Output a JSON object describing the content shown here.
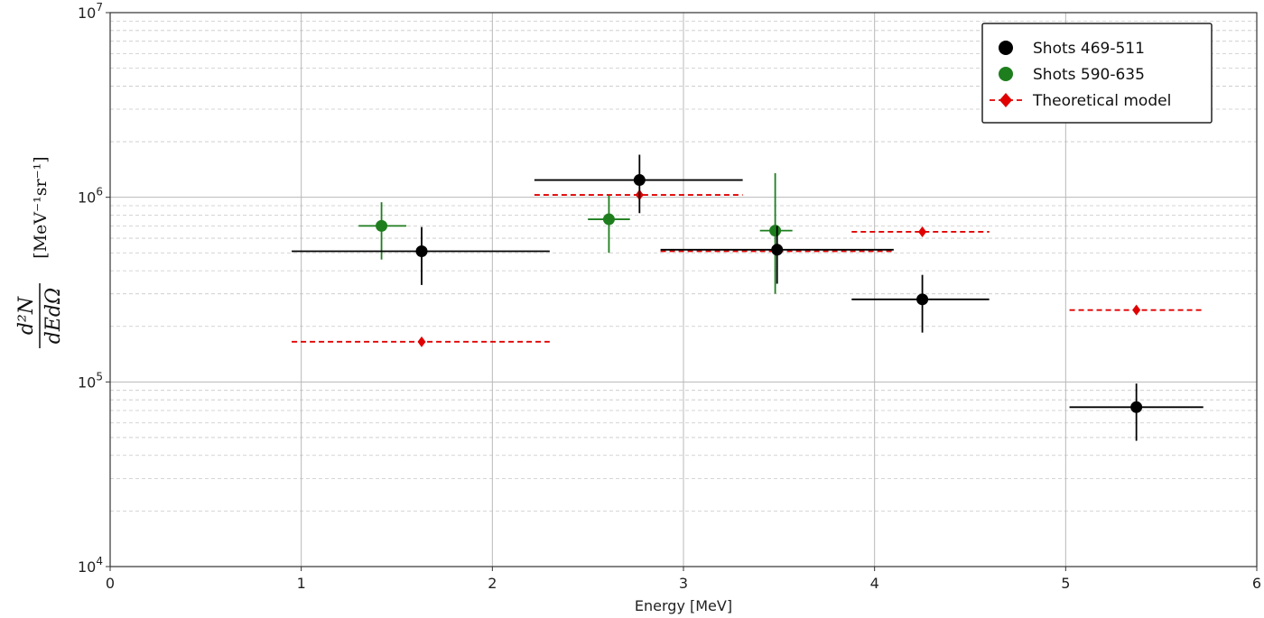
{
  "chart_data": {
    "type": "scatter",
    "title": "",
    "xlabel": "Energy [MeV]",
    "ylabel": {
      "numerator": "d²N",
      "denominator": "dEdΩ",
      "units": "[MeV⁻¹sr⁻¹]"
    },
    "xlim": [
      0,
      6
    ],
    "ylim": [
      10000,
      10000000
    ],
    "yscale": "log",
    "grid": true,
    "legend_position": "top-right",
    "x_ticks": [
      "0",
      "1",
      "2",
      "3",
      "4",
      "5",
      "6"
    ],
    "y_ticks": [
      {
        "base": "10",
        "exp": "4"
      },
      {
        "base": "10",
        "exp": "5"
      },
      {
        "base": "10",
        "exp": "6"
      },
      {
        "base": "10",
        "exp": "7"
      }
    ],
    "series": [
      {
        "name": "Shots 469-511",
        "color": "#000000",
        "marker": "circle",
        "points": [
          {
            "x": 1.63,
            "xerr": [
              0.95,
              2.3
            ],
            "y": 510000,
            "yerr": [
              335000,
              690000
            ]
          },
          {
            "x": 2.77,
            "xerr": [
              2.22,
              3.31
            ],
            "y": 1240000,
            "yerr": [
              820000,
              1700000
            ]
          },
          {
            "x": 3.49,
            "xerr": [
              2.88,
              4.1
            ],
            "y": 520000,
            "yerr": [
              340000,
              700000
            ]
          },
          {
            "x": 4.25,
            "xerr": [
              3.88,
              4.6
            ],
            "y": 280000,
            "yerr": [
              185000,
              380000
            ]
          },
          {
            "x": 5.37,
            "xerr": [
              5.02,
              5.72
            ],
            "y": 73000,
            "yerr": [
              48000,
              98000
            ]
          }
        ]
      },
      {
        "name": "Shots 590-635",
        "color": "#1e7e1e",
        "marker": "circle",
        "points": [
          {
            "x": 1.42,
            "xerr": [
              1.3,
              1.55
            ],
            "y": 700000,
            "yerr": [
              460000,
              940000
            ]
          },
          {
            "x": 2.61,
            "xerr": [
              2.5,
              2.72
            ],
            "y": 760000,
            "yerr": [
              500000,
              1020000
            ]
          },
          {
            "x": 3.48,
            "xerr": [
              3.4,
              3.57
            ],
            "y": 660000,
            "yerr": [
              300000,
              1350000
            ]
          }
        ]
      },
      {
        "name": "Theoretical model",
        "color": "#e00000",
        "marker": "diamond",
        "linestyle": "dashed",
        "points": [
          {
            "x": 1.63,
            "xerr": [
              0.95,
              2.3
            ],
            "y": 165000
          },
          {
            "x": 2.77,
            "xerr": [
              2.22,
              3.31
            ],
            "y": 1030000
          },
          {
            "x": 3.49,
            "xerr": [
              2.88,
              4.1
            ],
            "y": 510000
          },
          {
            "x": 4.25,
            "xerr": [
              3.88,
              4.6
            ],
            "y": 650000
          },
          {
            "x": 5.37,
            "xerr": [
              5.02,
              5.72
            ],
            "y": 245000
          }
        ]
      }
    ]
  }
}
